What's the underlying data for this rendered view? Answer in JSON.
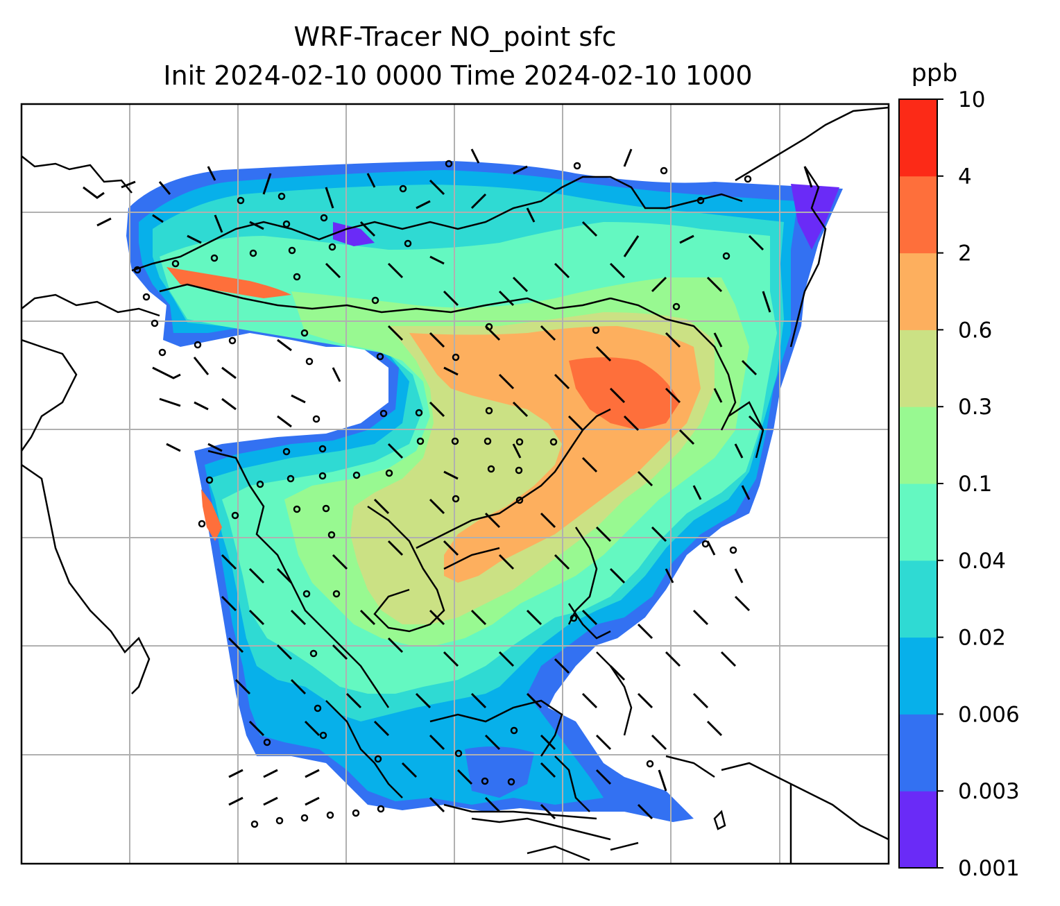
{
  "title_line1": "WRF-Tracer NO_point sfc",
  "title_line2": "Init 2024-02-10 0000 Time 2024-02-10 1000",
  "colorbar": {
    "unit": "ppb",
    "ticks": [
      "0.001",
      "0.003",
      "0.006",
      "0.02",
      "0.04",
      "0.1",
      "0.3",
      "0.6",
      "2",
      "4",
      "10"
    ],
    "colors": [
      "#6a2bf7",
      "#3371f2",
      "#07b0ea",
      "#2fdad3",
      "#64f8c1",
      "#98f991",
      "#cbe184",
      "#fdaf5e",
      "#fe6f3b",
      "#fc2a17"
    ]
  }
}
